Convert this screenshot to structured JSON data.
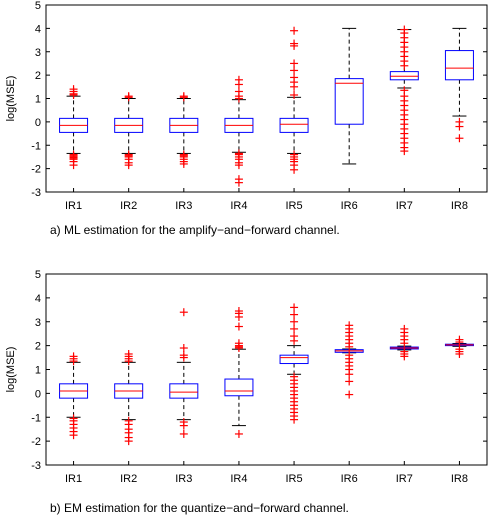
{
  "chart_data": [
    {
      "type": "box",
      "caption": "a) ML estimation for the amplify−and−forward channel.",
      "ylabel": "log(MSE)",
      "ylim": [
        -3,
        5
      ],
      "yticks": [
        -3,
        -2,
        -1,
        0,
        1,
        2,
        3,
        4,
        5
      ],
      "categories": [
        "IR1",
        "IR2",
        "IR3",
        "IR4",
        "IR5",
        "IR6",
        "IR7",
        "IR8"
      ],
      "grid": false,
      "colors": {
        "box": "#0000ff",
        "median": "#ff0000",
        "outlier": "#ff0000",
        "whisker": "#000000"
      },
      "boxes": [
        {
          "q1": -0.45,
          "median": -0.15,
          "q3": 0.15,
          "whisker_low": -1.35,
          "whisker_high": 1.1,
          "outliers": [
            1.15,
            1.2,
            1.3,
            1.4,
            -1.4,
            -1.45,
            -1.5,
            -1.55,
            -1.6,
            -1.7,
            -1.85
          ]
        },
        {
          "q1": -0.45,
          "median": -0.15,
          "q3": 0.15,
          "whisker_low": -1.35,
          "whisker_high": 1.0,
          "outliers": [
            1.05,
            1.1,
            -1.4,
            -1.45,
            -1.5,
            -1.6,
            -1.75,
            -1.85
          ]
        },
        {
          "q1": -0.45,
          "median": -0.15,
          "q3": 0.15,
          "whisker_low": -1.35,
          "whisker_high": 1.0,
          "outliers": [
            1.05,
            1.1,
            -1.4,
            -1.45,
            -1.5,
            -1.6,
            -1.7,
            -1.8
          ]
        },
        {
          "q1": -0.45,
          "median": -0.15,
          "q3": 0.15,
          "whisker_low": -1.3,
          "whisker_high": 0.95,
          "outliers": [
            1.0,
            1.1,
            1.3,
            1.6,
            1.8,
            -1.35,
            -1.4,
            -1.5,
            -1.6,
            -1.75,
            -1.85,
            -2.45,
            -2.6
          ]
        },
        {
          "q1": -0.45,
          "median": -0.1,
          "q3": 0.15,
          "whisker_low": -1.35,
          "whisker_high": 1.05,
          "outliers": [
            1.15,
            1.5,
            1.7,
            1.9,
            2.2,
            2.5,
            3.25,
            3.35,
            3.9,
            -1.4,
            -1.5,
            -1.6,
            -1.7,
            -1.85,
            -2.05
          ]
        },
        {
          "q1": -0.1,
          "median": 1.65,
          "q3": 1.85,
          "whisker_low": -1.8,
          "whisker_high": 4.0,
          "outliers": []
        },
        {
          "q1": 1.8,
          "median": 1.95,
          "q3": 2.15,
          "whisker_low": 1.45,
          "whisker_high": 3.95,
          "outliers": [
            2.4,
            2.6,
            2.8,
            3.0,
            3.2,
            3.4,
            3.6,
            3.8,
            3.95,
            1.35,
            1.1,
            0.9,
            0.7,
            0.5,
            0.3,
            0.1,
            -0.1,
            -0.3,
            -0.5,
            -0.7,
            -0.9,
            -1.1,
            -1.25
          ]
        },
        {
          "q1": 1.8,
          "median": 2.3,
          "q3": 3.05,
          "whisker_low": 0.25,
          "whisker_high": 4.0,
          "outliers": [
            0.0,
            -0.2,
            -0.7
          ]
        }
      ]
    },
    {
      "type": "box",
      "caption": "b) EM estimation for the quantize−and−forward channel.",
      "ylabel": "log(MSE)",
      "ylim": [
        -3,
        5
      ],
      "yticks": [
        -3,
        -2,
        -1,
        0,
        1,
        2,
        3,
        4,
        5
      ],
      "categories": [
        "IR1",
        "IR2",
        "IR3",
        "IR4",
        "IR5",
        "IR6",
        "IR7",
        "IR8"
      ],
      "grid": false,
      "colors": {
        "box": "#0000ff",
        "median": "#ff0000",
        "outlier": "#ff0000",
        "whisker": "#000000"
      },
      "boxes": [
        {
          "q1": -0.2,
          "median": 0.1,
          "q3": 0.4,
          "whisker_low": -1.0,
          "whisker_high": 1.3,
          "outliers": [
            1.35,
            1.45,
            1.55,
            -1.05,
            -1.15,
            -1.3,
            -1.45,
            -1.6,
            -1.75
          ]
        },
        {
          "q1": -0.2,
          "median": 0.1,
          "q3": 0.4,
          "whisker_low": -1.1,
          "whisker_high": 1.3,
          "outliers": [
            1.35,
            1.45,
            1.55,
            1.65,
            -1.15,
            -1.3,
            -1.5,
            -1.65,
            -1.85,
            -2.0
          ]
        },
        {
          "q1": -0.2,
          "median": 0.05,
          "q3": 0.4,
          "whisker_low": -1.1,
          "whisker_high": 1.3,
          "outliers": [
            1.5,
            1.6,
            1.9,
            3.4,
            -1.2,
            -1.35,
            -1.7
          ]
        },
        {
          "q1": -0.1,
          "median": 0.1,
          "q3": 0.6,
          "whisker_low": -1.35,
          "whisker_high": 1.85,
          "outliers": [
            1.9,
            1.95,
            2.0,
            2.1,
            2.8,
            3.2,
            3.35,
            3.45,
            -1.7
          ]
        },
        {
          "q1": 1.25,
          "median": 1.5,
          "q3": 1.6,
          "whisker_low": 0.8,
          "whisker_high": 2.0,
          "outliers": [
            2.2,
            2.4,
            2.7,
            3.0,
            3.3,
            3.6,
            0.7,
            0.55,
            0.4,
            0.25,
            0.1,
            -0.05,
            -0.2,
            -0.35,
            -0.5,
            -0.65,
            -0.8,
            -0.95,
            -1.1
          ]
        },
        {
          "q1": 1.72,
          "median": 1.78,
          "q3": 1.83,
          "whisker_low": 1.7,
          "whisker_high": 1.86,
          "outliers": [
            1.95,
            2.1,
            2.25,
            2.4,
            2.55,
            2.7,
            2.85,
            1.6,
            1.45,
            1.3,
            1.15,
            1.0,
            0.8,
            0.5,
            -0.05
          ]
        },
        {
          "q1": 1.86,
          "median": 1.9,
          "q3": 1.94,
          "whisker_low": 1.82,
          "whisker_high": 1.98,
          "outliers": [
            2.1,
            2.25,
            2.4,
            2.55,
            2.7,
            1.75,
            1.65,
            1.55
          ]
        },
        {
          "q1": 2.0,
          "median": 2.03,
          "q3": 2.06,
          "whisker_low": 1.97,
          "whisker_high": 2.09,
          "outliers": [
            2.15,
            2.25,
            1.85,
            1.75,
            1.65
          ]
        }
      ]
    }
  ]
}
